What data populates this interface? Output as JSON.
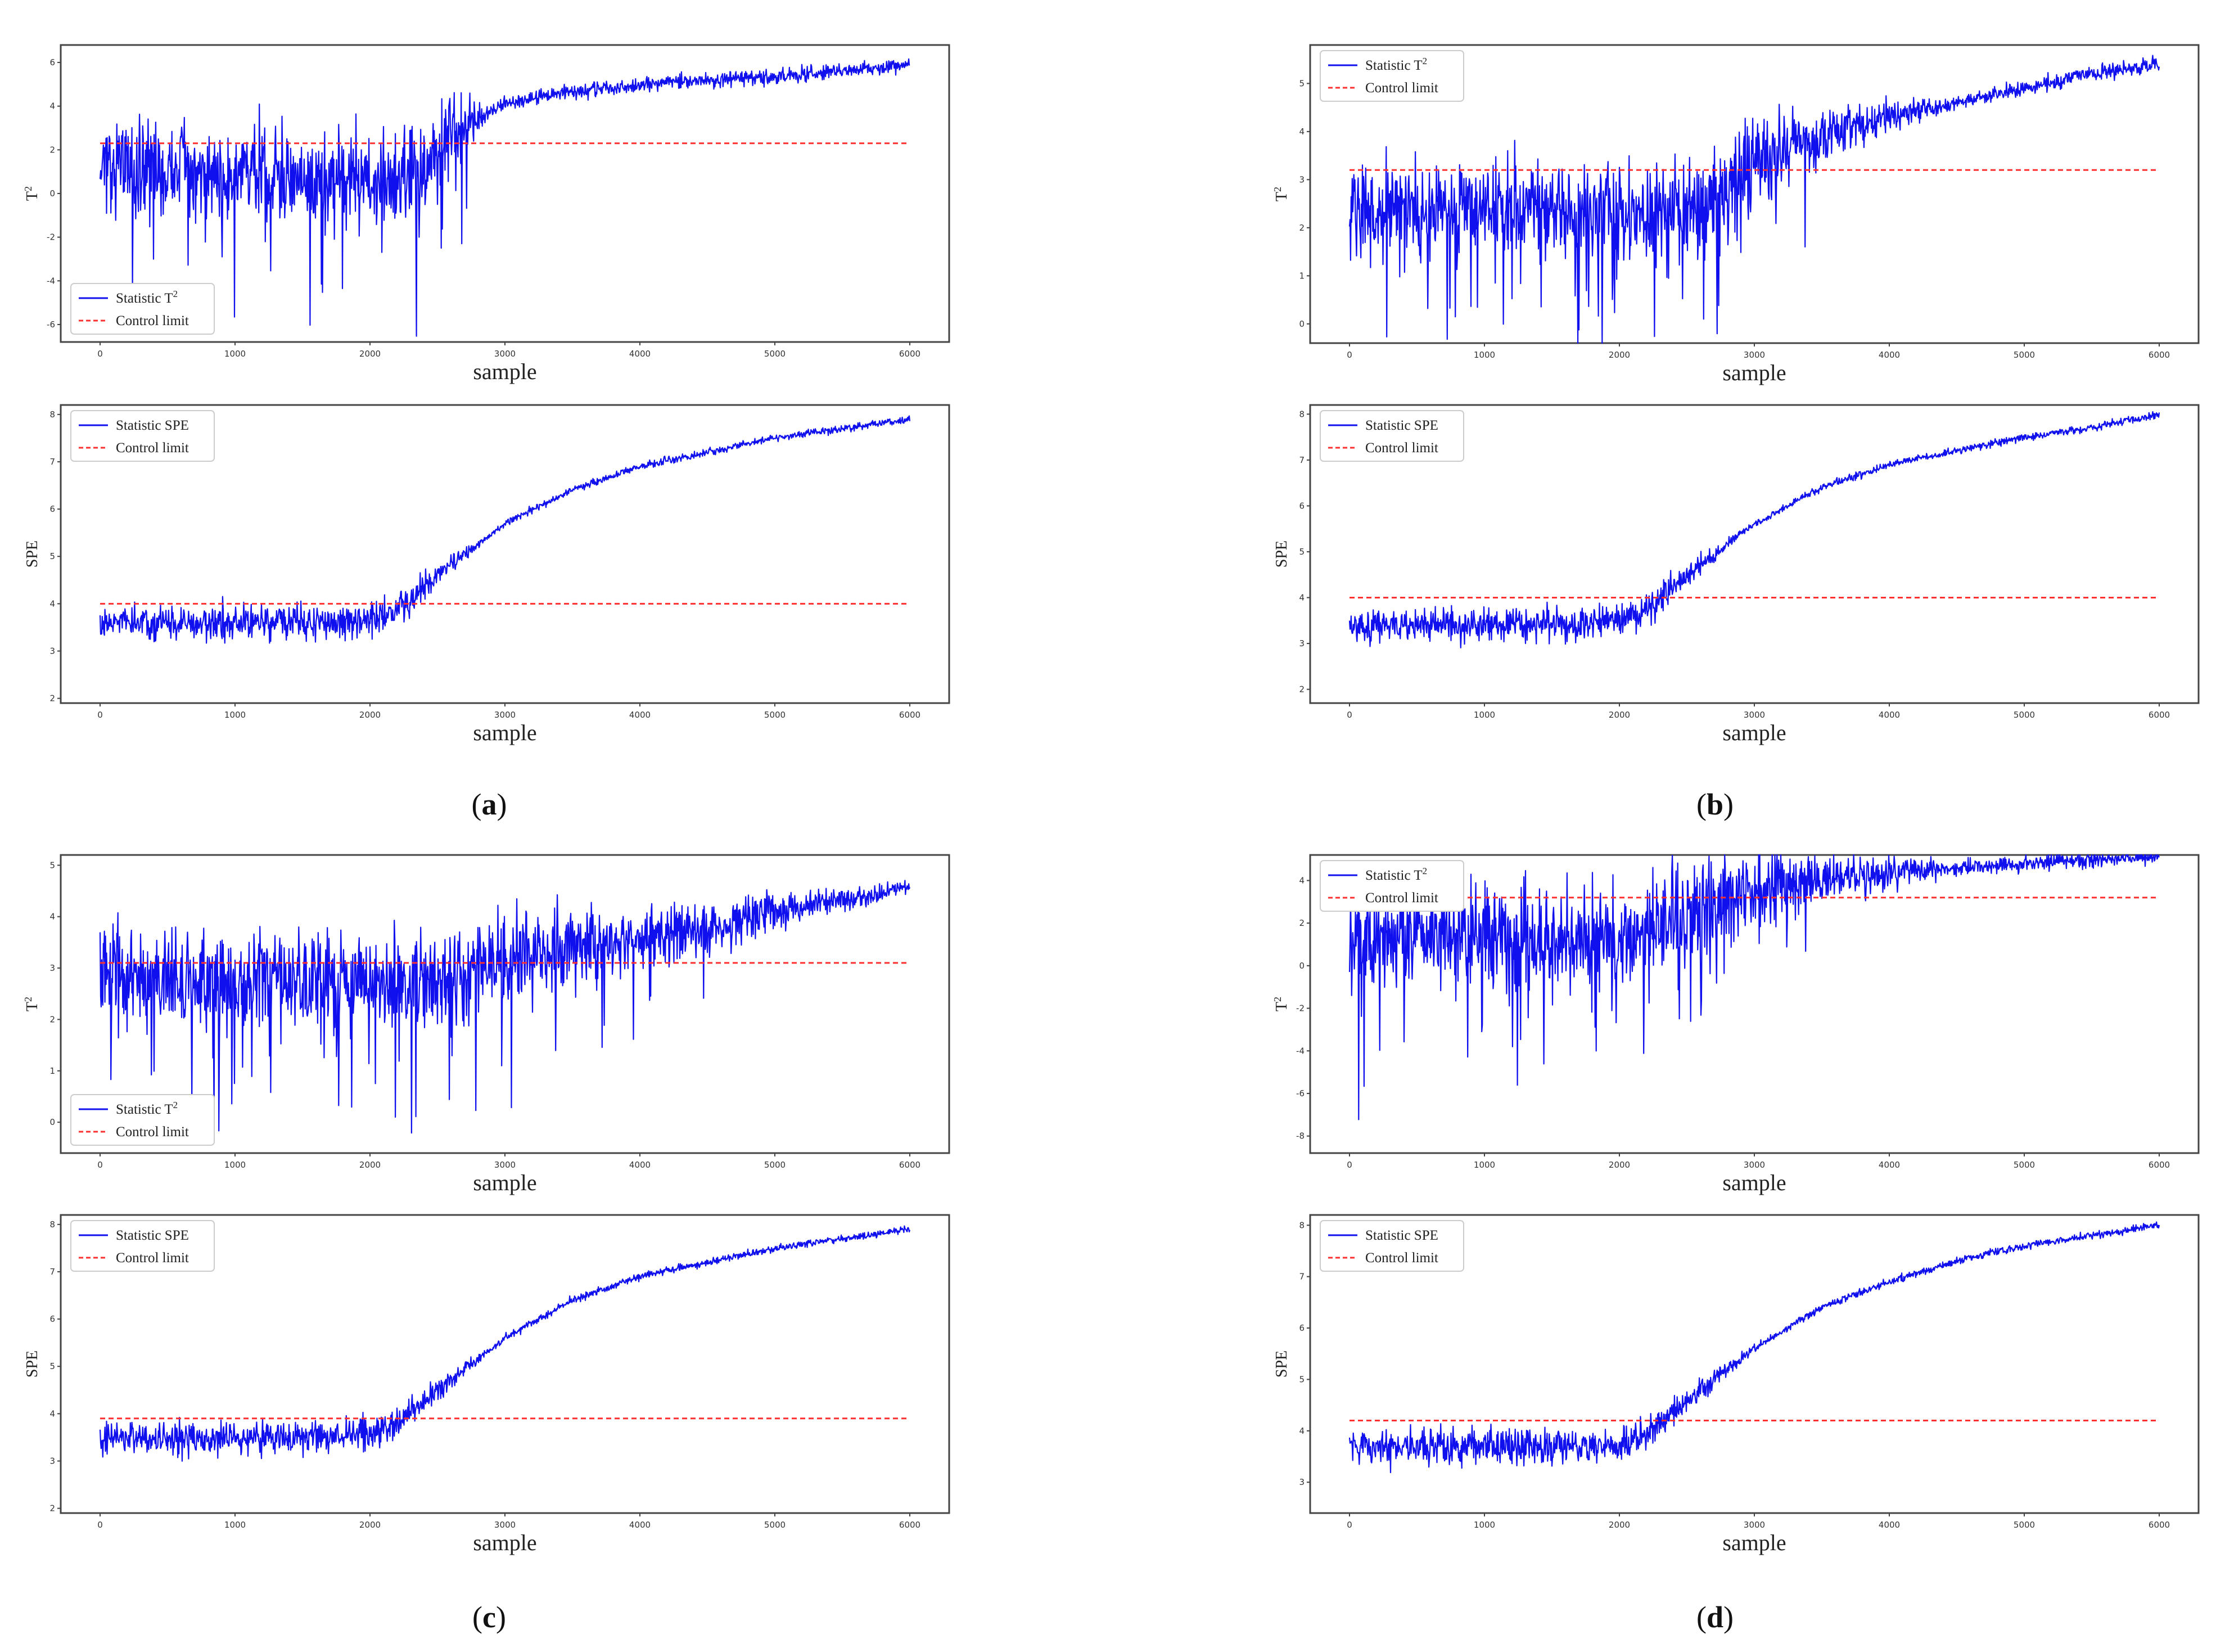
{
  "figure": {
    "colors": {
      "statistic": "#1010ee",
      "control_limit": "#ff3030",
      "frame": "#444444"
    },
    "captions": [
      {
        "open": "(",
        "letter": "a",
        "close": ")"
      },
      {
        "open": "(",
        "letter": "b",
        "close": ")"
      },
      {
        "open": "(",
        "letter": "c",
        "close": ")"
      },
      {
        "open": "(",
        "letter": "d",
        "close": ")"
      }
    ]
  },
  "chart_data": [
    {
      "id": "a-T2",
      "panel": "a",
      "type": "line",
      "xlabel": "sample",
      "ylabel": "T",
      "ylabel_sup": "2",
      "xlim": [
        0,
        6000
      ],
      "ylim": [
        -6.8,
        6.8
      ],
      "xticks": [
        0,
        1000,
        2000,
        3000,
        4000,
        5000,
        6000
      ],
      "xtick_labels": [
        "0",
        "1000",
        "2000",
        "3000",
        "4000",
        "5000",
        "6000"
      ],
      "yticks": [
        -6,
        -4,
        -2,
        0,
        2,
        4,
        6
      ],
      "ytick_labels": [
        "-6",
        "-4",
        "-2",
        "0",
        "2",
        "4",
        "6"
      ],
      "legend": {
        "location": "lower-left",
        "entries": [
          {
            "label": "Statistic T",
            "sup": "2",
            "style": "solid"
          },
          {
            "label": "Control limit",
            "sup": "",
            "style": "dashed"
          }
        ]
      },
      "control_limit": 2.3,
      "series": [
        {
          "name": "Statistic T2",
          "x": [
            0,
            300,
            600,
            900,
            1200,
            1500,
            1800,
            2100,
            2400,
            2700,
            2900,
            3000,
            3300,
            3600,
            3900,
            4200,
            4500,
            4800,
            5100,
            5400,
            5700,
            6000
          ],
          "y": [
            1.0,
            1.3,
            1.0,
            0.4,
            1.2,
            0.5,
            1.0,
            0.4,
            1.3,
            2.8,
            3.8,
            4.1,
            4.5,
            4.7,
            4.9,
            5.1,
            5.2,
            5.3,
            5.4,
            5.6,
            5.7,
            5.9
          ]
        }
      ]
    },
    {
      "id": "a-SPE",
      "panel": "a",
      "type": "line",
      "xlabel": "sample",
      "ylabel": "SPE",
      "ylabel_sup": "",
      "xlim": [
        0,
        6000
      ],
      "ylim": [
        1.9,
        8.2
      ],
      "xticks": [
        0,
        1000,
        2000,
        3000,
        4000,
        5000,
        6000
      ],
      "xtick_labels": [
        "0",
        "1000",
        "2000",
        "3000",
        "4000",
        "5000",
        "6000"
      ],
      "yticks": [
        2,
        3,
        4,
        5,
        6,
        7,
        8
      ],
      "ytick_labels": [
        "2",
        "3",
        "4",
        "5",
        "6",
        "7",
        "8"
      ],
      "legend": {
        "location": "top-left",
        "entries": [
          {
            "label": "Statistic SPE",
            "sup": "",
            "style": "solid"
          },
          {
            "label": "Control limit",
            "sup": "",
            "style": "dashed"
          }
        ]
      },
      "control_limit": 4.0,
      "series": [
        {
          "name": "Statistic SPE",
          "x": [
            0,
            500,
            1000,
            1500,
            2000,
            2200,
            2500,
            3000,
            3500,
            4000,
            4500,
            5000,
            5500,
            6000
          ],
          "y": [
            3.6,
            3.6,
            3.6,
            3.6,
            3.6,
            3.8,
            4.6,
            5.7,
            6.4,
            6.9,
            7.2,
            7.5,
            7.7,
            7.9
          ]
        }
      ]
    },
    {
      "id": "b-T2",
      "panel": "b",
      "type": "line",
      "xlabel": "sample",
      "ylabel": "T",
      "ylabel_sup": "2",
      "xlim": [
        0,
        6000
      ],
      "ylim": [
        -0.4,
        5.8
      ],
      "xticks": [
        0,
        1000,
        2000,
        3000,
        4000,
        5000,
        6000
      ],
      "xtick_labels": [
        "0",
        "1000",
        "2000",
        "3000",
        "4000",
        "5000",
        "6000"
      ],
      "yticks": [
        0,
        1,
        2,
        3,
        4,
        5
      ],
      "ytick_labels": [
        "0",
        "1",
        "2",
        "3",
        "4",
        "5"
      ],
      "legend": {
        "location": "top-left",
        "entries": [
          {
            "label": "Statistic T",
            "sup": "2",
            "style": "solid"
          },
          {
            "label": "Control limit",
            "sup": "",
            "style": "dashed"
          }
        ]
      },
      "control_limit": 3.2,
      "series": [
        {
          "name": "Statistic T2",
          "x": [
            0,
            500,
            1000,
            1500,
            2000,
            2500,
            2800,
            3000,
            3300,
            3600,
            4000,
            4500,
            5000,
            5500,
            6000
          ],
          "y": [
            2.4,
            2.4,
            2.3,
            2.4,
            2.3,
            2.4,
            2.7,
            3.3,
            3.7,
            4.0,
            4.3,
            4.6,
            4.9,
            5.2,
            5.4
          ]
        }
      ]
    },
    {
      "id": "b-SPE",
      "panel": "b",
      "type": "line",
      "xlabel": "sample",
      "ylabel": "SPE",
      "ylabel_sup": "",
      "xlim": [
        0,
        6000
      ],
      "ylim": [
        1.7,
        8.2
      ],
      "xticks": [
        0,
        1000,
        2000,
        3000,
        4000,
        5000,
        6000
      ],
      "xtick_labels": [
        "0",
        "1000",
        "2000",
        "3000",
        "4000",
        "5000",
        "6000"
      ],
      "yticks": [
        2,
        3,
        4,
        5,
        6,
        7,
        8
      ],
      "ytick_labels": [
        "2",
        "3",
        "4",
        "5",
        "6",
        "7",
        "8"
      ],
      "legend": {
        "location": "top-left",
        "entries": [
          {
            "label": "Statistic SPE",
            "sup": "",
            "style": "solid"
          },
          {
            "label": "Control limit",
            "sup": "",
            "style": "dashed"
          }
        ]
      },
      "control_limit": 4.0,
      "series": [
        {
          "name": "Statistic SPE",
          "x": [
            0,
            500,
            1000,
            1500,
            2000,
            2200,
            2500,
            3000,
            3500,
            4000,
            4500,
            5000,
            5500,
            6000
          ],
          "y": [
            3.4,
            3.4,
            3.4,
            3.4,
            3.5,
            3.7,
            4.5,
            5.6,
            6.4,
            6.9,
            7.2,
            7.5,
            7.7,
            8.0
          ]
        }
      ]
    },
    {
      "id": "c-T2",
      "panel": "c",
      "type": "line",
      "xlabel": "sample",
      "ylabel": "T",
      "ylabel_sup": "2",
      "xlim": [
        0,
        6000
      ],
      "ylim": [
        -0.6,
        5.2
      ],
      "xticks": [
        0,
        1000,
        2000,
        3000,
        4000,
        5000,
        6000
      ],
      "xtick_labels": [
        "0",
        "1000",
        "2000",
        "3000",
        "4000",
        "5000",
        "6000"
      ],
      "yticks": [
        0,
        1,
        2,
        3,
        4,
        5
      ],
      "ytick_labels": [
        "0",
        "1",
        "2",
        "3",
        "4",
        "5"
      ],
      "legend": {
        "location": "lower-left",
        "entries": [
          {
            "label": "Statistic T",
            "sup": "2",
            "style": "solid"
          },
          {
            "label": "Control limit",
            "sup": "",
            "style": "dashed"
          }
        ]
      },
      "control_limit": 3.1,
      "series": [
        {
          "name": "Statistic T2",
          "x": [
            0,
            500,
            1000,
            1500,
            2000,
            2500,
            3000,
            3500,
            4000,
            4500,
            5000,
            5500,
            6000
          ],
          "y": [
            2.8,
            2.8,
            2.7,
            2.8,
            2.7,
            2.6,
            3.1,
            3.3,
            3.6,
            3.8,
            4.1,
            4.3,
            4.6
          ]
        }
      ]
    },
    {
      "id": "c-SPE",
      "panel": "c",
      "type": "line",
      "xlabel": "sample",
      "ylabel": "SPE",
      "ylabel_sup": "",
      "xlim": [
        0,
        6000
      ],
      "ylim": [
        1.9,
        8.2
      ],
      "xticks": [
        0,
        1000,
        2000,
        3000,
        4000,
        5000,
        6000
      ],
      "xtick_labels": [
        "0",
        "1000",
        "2000",
        "3000",
        "4000",
        "5000",
        "6000"
      ],
      "yticks": [
        2,
        3,
        4,
        5,
        6,
        7,
        8
      ],
      "ytick_labels": [
        "2",
        "3",
        "4",
        "5",
        "6",
        "7",
        "8"
      ],
      "legend": {
        "location": "top-left",
        "entries": [
          {
            "label": "Statistic SPE",
            "sup": "",
            "style": "solid"
          },
          {
            "label": "Control limit",
            "sup": "",
            "style": "dashed"
          }
        ]
      },
      "control_limit": 3.9,
      "series": [
        {
          "name": "Statistic SPE",
          "x": [
            0,
            500,
            1000,
            1500,
            2000,
            2200,
            2500,
            3000,
            3500,
            4000,
            4500,
            5000,
            5500,
            6000
          ],
          "y": [
            3.5,
            3.5,
            3.5,
            3.5,
            3.6,
            3.8,
            4.5,
            5.6,
            6.4,
            6.9,
            7.2,
            7.5,
            7.7,
            7.9
          ]
        }
      ]
    },
    {
      "id": "d-T2",
      "panel": "d",
      "type": "line",
      "xlabel": "sample",
      "ylabel": "T",
      "ylabel_sup": "2",
      "xlim": [
        0,
        6000
      ],
      "ylim": [
        -8.8,
        5.2
      ],
      "xticks": [
        0,
        1000,
        2000,
        3000,
        4000,
        5000,
        6000
      ],
      "xtick_labels": [
        "0",
        "1000",
        "2000",
        "3000",
        "4000",
        "5000",
        "6000"
      ],
      "yticks": [
        -8,
        -6,
        -4,
        -2,
        0,
        2,
        4
      ],
      "ytick_labels": [
        "-8",
        "-6",
        "-4",
        "-2",
        "0",
        "2",
        "4"
      ],
      "legend": {
        "location": "top-left",
        "entries": [
          {
            "label": "Statistic T",
            "sup": "2",
            "style": "solid"
          },
          {
            "label": "Control limit",
            "sup": "",
            "style": "dashed"
          }
        ]
      },
      "control_limit": 3.2,
      "series": [
        {
          "name": "Statistic T2",
          "x": [
            0,
            500,
            1000,
            1500,
            2000,
            2500,
            2800,
            3000,
            3500,
            4000,
            4500,
            5000,
            5500,
            6000
          ],
          "y": [
            1.4,
            1.5,
            1.3,
            1.4,
            1.2,
            2.4,
            3.2,
            3.5,
            4.0,
            4.3,
            4.6,
            4.8,
            5.0,
            5.1
          ]
        }
      ]
    },
    {
      "id": "d-SPE",
      "panel": "d",
      "type": "line",
      "xlabel": "sample",
      "ylabel": "SPE",
      "ylabel_sup": "",
      "xlim": [
        0,
        6000
      ],
      "ylim": [
        2.4,
        8.2
      ],
      "xticks": [
        0,
        1000,
        2000,
        3000,
        4000,
        5000,
        6000
      ],
      "xtick_labels": [
        "0",
        "1000",
        "2000",
        "3000",
        "4000",
        "5000",
        "6000"
      ],
      "yticks": [
        3,
        4,
        5,
        6,
        7,
        8
      ],
      "ytick_labels": [
        "3",
        "4",
        "5",
        "6",
        "7",
        "8"
      ],
      "legend": {
        "location": "top-left",
        "entries": [
          {
            "label": "Statistic SPE",
            "sup": "",
            "style": "solid"
          },
          {
            "label": "Control limit",
            "sup": "",
            "style": "dashed"
          }
        ]
      },
      "control_limit": 4.2,
      "series": [
        {
          "name": "Statistic SPE",
          "x": [
            0,
            500,
            1000,
            1500,
            2000,
            2200,
            2500,
            3000,
            3500,
            4000,
            4500,
            5000,
            5500,
            6000
          ],
          "y": [
            3.7,
            3.7,
            3.7,
            3.7,
            3.7,
            3.9,
            4.6,
            5.6,
            6.4,
            6.9,
            7.3,
            7.6,
            7.8,
            8.0
          ]
        }
      ]
    }
  ]
}
